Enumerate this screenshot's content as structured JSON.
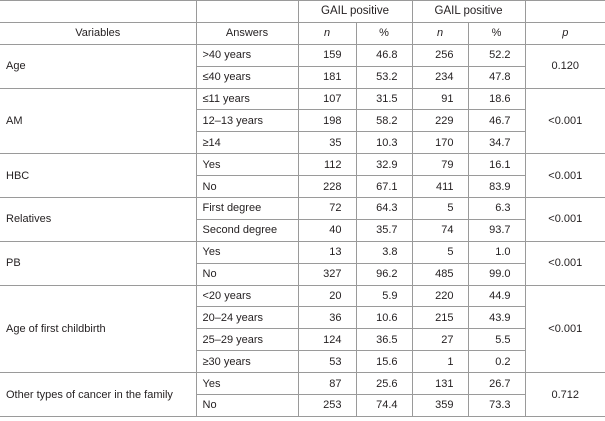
{
  "header": {
    "variables": "Variables",
    "answers": "Answers",
    "group1": "GAIL positive",
    "group2": "GAIL positive",
    "n": "n",
    "pct": "%",
    "p": "p"
  },
  "rows": [
    {
      "variable": "Age",
      "p": "0.120",
      "answers": [
        {
          "label": ">40 years",
          "n1": "159",
          "pct1": "46.8",
          "n2": "256",
          "pct2": "52.2"
        },
        {
          "label": "≤40 years",
          "n1": "181",
          "pct1": "53.2",
          "n2": "234",
          "pct2": "47.8"
        }
      ]
    },
    {
      "variable": "AM",
      "p": "<0.001",
      "answers": [
        {
          "label": "≤11 years",
          "n1": "107",
          "pct1": "31.5",
          "n2": "91",
          "pct2": "18.6"
        },
        {
          "label": "12–13 years",
          "n1": "198",
          "pct1": "58.2",
          "n2": "229",
          "pct2": "46.7"
        },
        {
          "label": "≥14",
          "n1": "35",
          "pct1": "10.3",
          "n2": "170",
          "pct2": "34.7"
        }
      ]
    },
    {
      "variable": "HBC",
      "p": "<0.001",
      "answers": [
        {
          "label": "Yes",
          "n1": "112",
          "pct1": "32.9",
          "n2": "79",
          "pct2": "16.1"
        },
        {
          "label": "No",
          "n1": "228",
          "pct1": "67.1",
          "n2": "411",
          "pct2": "83.9"
        }
      ]
    },
    {
      "variable": "Relatives",
      "p": "<0.001",
      "answers": [
        {
          "label": "First degree",
          "n1": "72",
          "pct1": "64.3",
          "n2": "5",
          "pct2": "6.3"
        },
        {
          "label": "Second degree",
          "n1": "40",
          "pct1": "35.7",
          "n2": "74",
          "pct2": "93.7"
        }
      ]
    },
    {
      "variable": "PB",
      "p": "<0.001",
      "answers": [
        {
          "label": "Yes",
          "n1": "13",
          "pct1": "3.8",
          "n2": "5",
          "pct2": "1.0"
        },
        {
          "label": "No",
          "n1": "327",
          "pct1": "96.2",
          "n2": "485",
          "pct2": "99.0"
        }
      ]
    },
    {
      "variable": "Age of first childbirth",
      "p": "<0.001",
      "answers": [
        {
          "label": "<20 years",
          "n1": "20",
          "pct1": "5.9",
          "n2": "220",
          "pct2": "44.9"
        },
        {
          "label": "20–24 years",
          "n1": "36",
          "pct1": "10.6",
          "n2": "215",
          "pct2": "43.9"
        },
        {
          "label": "25–29 years",
          "n1": "124",
          "pct1": "36.5",
          "n2": "27",
          "pct2": "5.5"
        },
        {
          "label": "≥30 years",
          "n1": "53",
          "pct1": "15.6",
          "n2": "1",
          "pct2": "0.2"
        }
      ]
    },
    {
      "variable": "Other types of cancer in the family",
      "p": "0.712",
      "answers": [
        {
          "label": "Yes",
          "n1": "87",
          "pct1": "25.6",
          "n2": "131",
          "pct2": "26.7"
        },
        {
          "label": "No",
          "n1": "253",
          "pct1": "74.4",
          "n2": "359",
          "pct2": "73.3"
        }
      ]
    }
  ]
}
